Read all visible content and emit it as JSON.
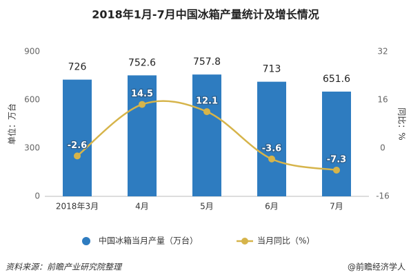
{
  "chart_data": {
    "type": "bar",
    "title": "2018年1月-7月中国冰箱产量统计及增长情况",
    "categories": [
      "2018年3月",
      "4月",
      "5月",
      "6月",
      "7月"
    ],
    "series": [
      {
        "name": "中国冰箱当月产量（万台）",
        "type": "bar",
        "color": "#2e7cc0",
        "values": [
          726,
          752.6,
          757.8,
          713,
          651.6
        ]
      },
      {
        "name": "当月同比（%）",
        "type": "line",
        "axis": "y2",
        "color": "#d6b44a",
        "values": [
          -2.6,
          14.5,
          12.1,
          -3.6,
          -7.3
        ]
      }
    ],
    "ylabel": "单位：万台",
    "y2label": "同比：%",
    "ylim": [
      0,
      900
    ],
    "yticks": [
      0,
      300,
      600,
      900
    ],
    "y2lim": [
      -16,
      32
    ],
    "y2ticks": [
      -16,
      0,
      16,
      32
    ],
    "source": "资料来源：前瞻产业研究院整理",
    "credit": "@前瞻经济学人"
  }
}
